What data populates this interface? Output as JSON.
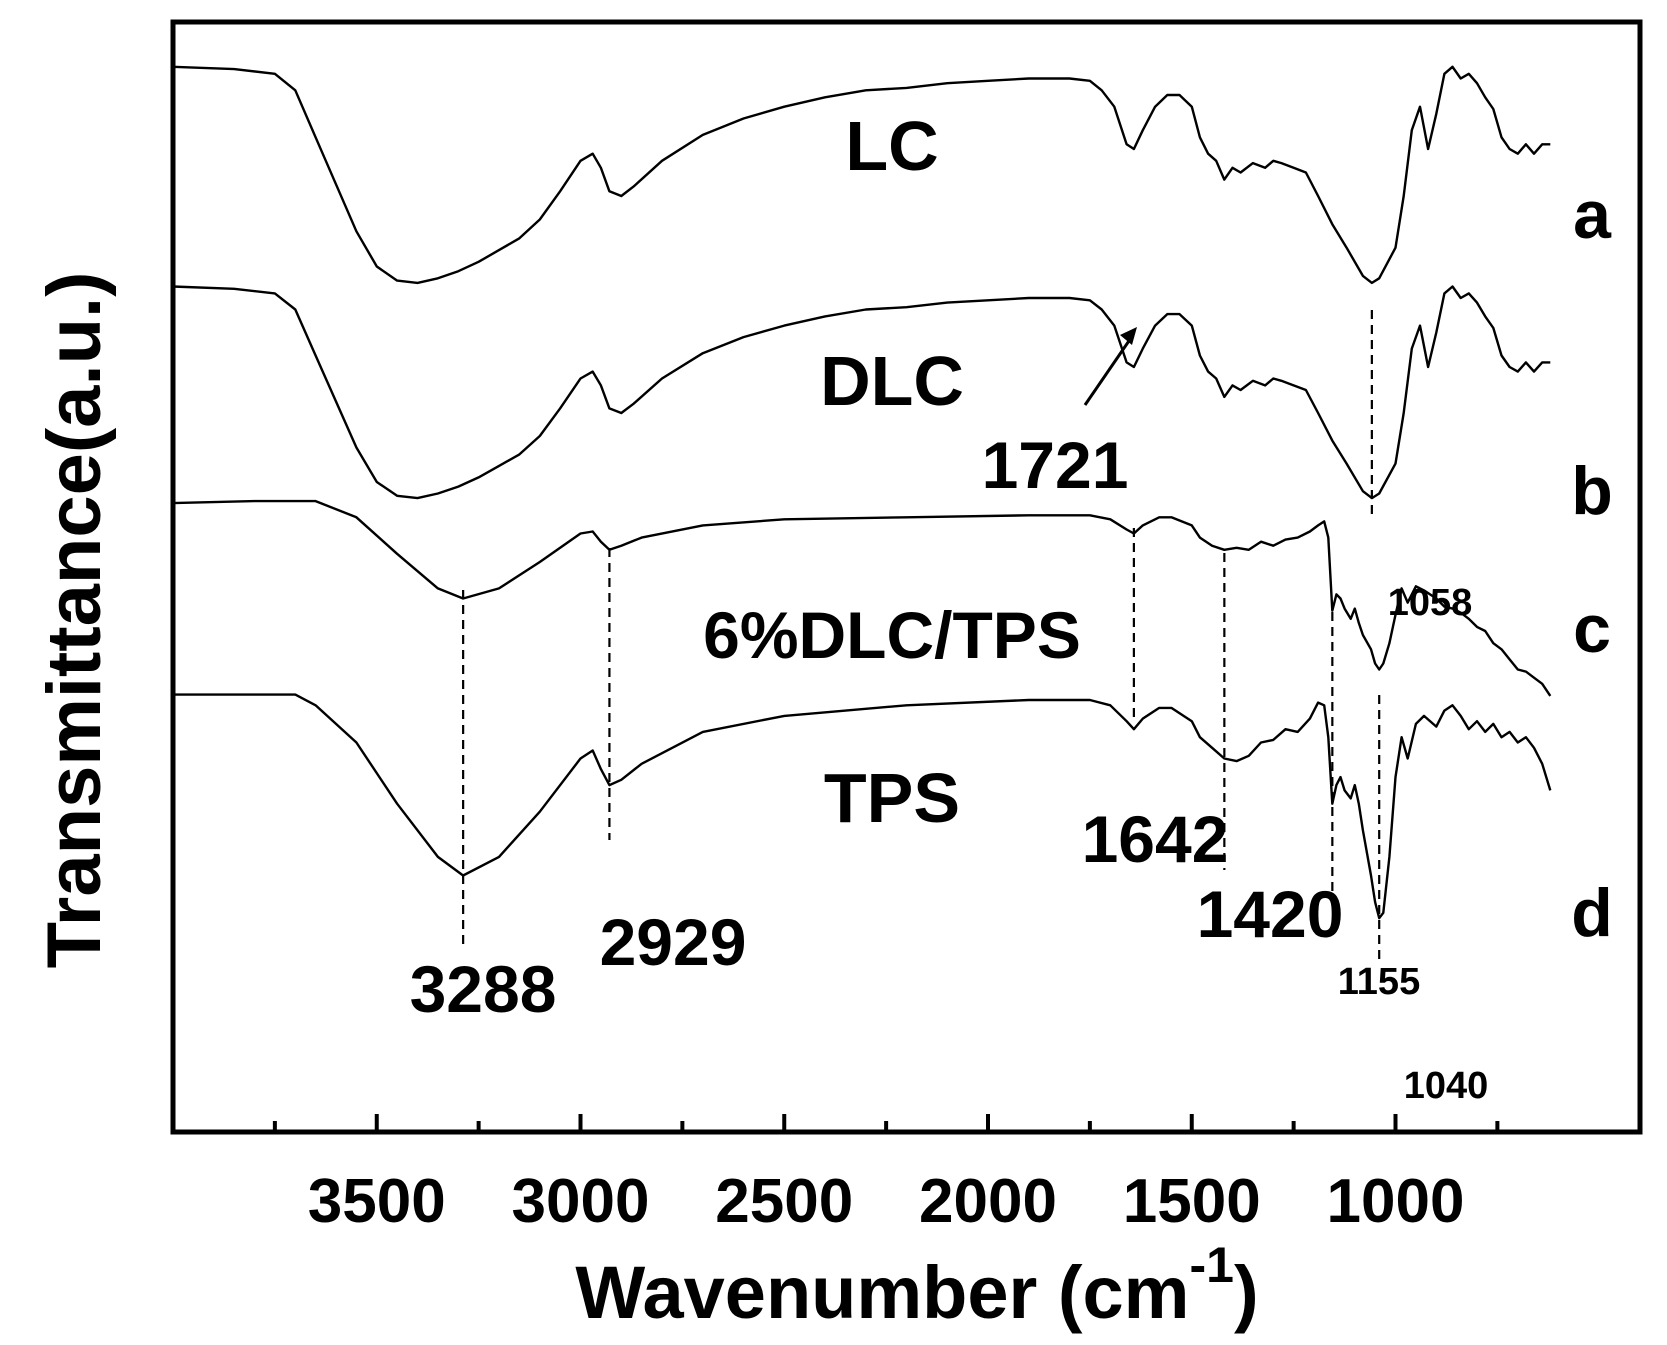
{
  "chart_data": {
    "type": "line",
    "xlabel": "Wavenumber (cm",
    "xlabel_superscript": "-1",
    "xlabel_close": ")",
    "ylabel": "Transmittance(a.u.)",
    "xlim": [
      4000,
      400
    ],
    "x_reversed": true,
    "x_ticks": [
      3500,
      3000,
      2500,
      2000,
      1500,
      1000
    ],
    "x_minor_ticks": [
      3750,
      3250,
      2750,
      2250,
      1750,
      1250,
      750
    ],
    "y_tick_labels": false,
    "grid": false,
    "line_color": "#000000",
    "series": [
      {
        "name": "LC",
        "letter": "a",
        "points": [
          [
            4000,
            0.95
          ],
          [
            3850,
            0.94
          ],
          [
            3750,
            0.92
          ],
          [
            3700,
            0.85
          ],
          [
            3650,
            0.65
          ],
          [
            3600,
            0.45
          ],
          [
            3550,
            0.25
          ],
          [
            3500,
            0.1
          ],
          [
            3450,
            0.04
          ],
          [
            3400,
            0.03
          ],
          [
            3350,
            0.05
          ],
          [
            3300,
            0.08
          ],
          [
            3250,
            0.12
          ],
          [
            3200,
            0.17
          ],
          [
            3150,
            0.22
          ],
          [
            3100,
            0.3
          ],
          [
            3050,
            0.42
          ],
          [
            3000,
            0.55
          ],
          [
            2970,
            0.58
          ],
          [
            2950,
            0.52
          ],
          [
            2929,
            0.42
          ],
          [
            2900,
            0.4
          ],
          [
            2870,
            0.44
          ],
          [
            2800,
            0.55
          ],
          [
            2700,
            0.66
          ],
          [
            2600,
            0.73
          ],
          [
            2500,
            0.78
          ],
          [
            2400,
            0.82
          ],
          [
            2300,
            0.85
          ],
          [
            2200,
            0.86
          ],
          [
            2100,
            0.88
          ],
          [
            2000,
            0.89
          ],
          [
            1900,
            0.9
          ],
          [
            1800,
            0.9
          ],
          [
            1750,
            0.89
          ],
          [
            1721,
            0.85
          ],
          [
            1690,
            0.78
          ],
          [
            1660,
            0.62
          ],
          [
            1642,
            0.6
          ],
          [
            1620,
            0.68
          ],
          [
            1590,
            0.78
          ],
          [
            1560,
            0.83
          ],
          [
            1530,
            0.83
          ],
          [
            1500,
            0.78
          ],
          [
            1480,
            0.65
          ],
          [
            1460,
            0.58
          ],
          [
            1440,
            0.55
          ],
          [
            1420,
            0.47
          ],
          [
            1400,
            0.52
          ],
          [
            1380,
            0.5
          ],
          [
            1350,
            0.54
          ],
          [
            1320,
            0.52
          ],
          [
            1300,
            0.55
          ],
          [
            1280,
            0.54
          ],
          [
            1250,
            0.52
          ],
          [
            1220,
            0.5
          ],
          [
            1190,
            0.4
          ],
          [
            1155,
            0.28
          ],
          [
            1120,
            0.18
          ],
          [
            1080,
            0.06
          ],
          [
            1058,
            0.03
          ],
          [
            1040,
            0.05
          ],
          [
            1000,
            0.18
          ],
          [
            980,
            0.4
          ],
          [
            960,
            0.68
          ],
          [
            940,
            0.78
          ],
          [
            920,
            0.6
          ],
          [
            900,
            0.75
          ],
          [
            880,
            0.92
          ],
          [
            860,
            0.95
          ],
          [
            840,
            0.9
          ],
          [
            820,
            0.92
          ],
          [
            800,
            0.88
          ],
          [
            780,
            0.82
          ],
          [
            760,
            0.77
          ],
          [
            740,
            0.65
          ],
          [
            720,
            0.6
          ],
          [
            700,
            0.58
          ],
          [
            680,
            0.62
          ],
          [
            660,
            0.58
          ],
          [
            640,
            0.62
          ],
          [
            620,
            0.62
          ]
        ]
      },
      {
        "name": "DLC",
        "letter": "b",
        "points": [
          [
            4000,
            0.95
          ],
          [
            3850,
            0.94
          ],
          [
            3750,
            0.92
          ],
          [
            3700,
            0.85
          ],
          [
            3650,
            0.65
          ],
          [
            3600,
            0.45
          ],
          [
            3550,
            0.25
          ],
          [
            3500,
            0.1
          ],
          [
            3450,
            0.04
          ],
          [
            3400,
            0.03
          ],
          [
            3350,
            0.05
          ],
          [
            3300,
            0.08
          ],
          [
            3250,
            0.12
          ],
          [
            3200,
            0.17
          ],
          [
            3150,
            0.22
          ],
          [
            3100,
            0.3
          ],
          [
            3050,
            0.42
          ],
          [
            3000,
            0.55
          ],
          [
            2970,
            0.58
          ],
          [
            2950,
            0.52
          ],
          [
            2929,
            0.42
          ],
          [
            2900,
            0.4
          ],
          [
            2870,
            0.44
          ],
          [
            2800,
            0.55
          ],
          [
            2700,
            0.66
          ],
          [
            2600,
            0.73
          ],
          [
            2500,
            0.78
          ],
          [
            2400,
            0.82
          ],
          [
            2300,
            0.85
          ],
          [
            2200,
            0.86
          ],
          [
            2100,
            0.88
          ],
          [
            2000,
            0.89
          ],
          [
            1900,
            0.9
          ],
          [
            1800,
            0.9
          ],
          [
            1750,
            0.89
          ],
          [
            1721,
            0.85
          ],
          [
            1690,
            0.78
          ],
          [
            1660,
            0.62
          ],
          [
            1642,
            0.6
          ],
          [
            1620,
            0.68
          ],
          [
            1590,
            0.78
          ],
          [
            1560,
            0.83
          ],
          [
            1530,
            0.83
          ],
          [
            1500,
            0.78
          ],
          [
            1480,
            0.65
          ],
          [
            1460,
            0.58
          ],
          [
            1440,
            0.55
          ],
          [
            1420,
            0.47
          ],
          [
            1400,
            0.52
          ],
          [
            1380,
            0.5
          ],
          [
            1350,
            0.54
          ],
          [
            1320,
            0.52
          ],
          [
            1300,
            0.55
          ],
          [
            1280,
            0.54
          ],
          [
            1250,
            0.52
          ],
          [
            1220,
            0.5
          ],
          [
            1190,
            0.4
          ],
          [
            1155,
            0.28
          ],
          [
            1120,
            0.18
          ],
          [
            1080,
            0.06
          ],
          [
            1058,
            0.03
          ],
          [
            1040,
            0.05
          ],
          [
            1000,
            0.18
          ],
          [
            980,
            0.4
          ],
          [
            960,
            0.68
          ],
          [
            940,
            0.78
          ],
          [
            920,
            0.6
          ],
          [
            900,
            0.75
          ],
          [
            880,
            0.92
          ],
          [
            860,
            0.95
          ],
          [
            840,
            0.9
          ],
          [
            820,
            0.92
          ],
          [
            800,
            0.88
          ],
          [
            780,
            0.82
          ],
          [
            760,
            0.77
          ],
          [
            740,
            0.65
          ],
          [
            720,
            0.6
          ],
          [
            700,
            0.58
          ],
          [
            680,
            0.62
          ],
          [
            660,
            0.58
          ],
          [
            640,
            0.62
          ],
          [
            620,
            0.62
          ]
        ]
      },
      {
        "name": "6%DLC/TPS",
        "letter": "c",
        "points": [
          [
            4000,
            0.97
          ],
          [
            3800,
            0.98
          ],
          [
            3650,
            0.98
          ],
          [
            3550,
            0.9
          ],
          [
            3450,
            0.72
          ],
          [
            3350,
            0.55
          ],
          [
            3288,
            0.5
          ],
          [
            3200,
            0.55
          ],
          [
            3100,
            0.68
          ],
          [
            3000,
            0.82
          ],
          [
            2970,
            0.83
          ],
          [
            2950,
            0.78
          ],
          [
            2929,
            0.74
          ],
          [
            2900,
            0.76
          ],
          [
            2850,
            0.8
          ],
          [
            2700,
            0.86
          ],
          [
            2500,
            0.89
          ],
          [
            2200,
            0.9
          ],
          [
            1900,
            0.91
          ],
          [
            1750,
            0.91
          ],
          [
            1700,
            0.89
          ],
          [
            1660,
            0.84
          ],
          [
            1642,
            0.82
          ],
          [
            1620,
            0.86
          ],
          [
            1580,
            0.9
          ],
          [
            1550,
            0.9
          ],
          [
            1500,
            0.86
          ],
          [
            1480,
            0.8
          ],
          [
            1450,
            0.76
          ],
          [
            1420,
            0.74
          ],
          [
            1390,
            0.75
          ],
          [
            1360,
            0.74
          ],
          [
            1330,
            0.78
          ],
          [
            1300,
            0.76
          ],
          [
            1270,
            0.79
          ],
          [
            1240,
            0.8
          ],
          [
            1210,
            0.83
          ],
          [
            1190,
            0.86
          ],
          [
            1175,
            0.88
          ],
          [
            1165,
            0.8
          ],
          [
            1155,
            0.44
          ],
          [
            1145,
            0.52
          ],
          [
            1135,
            0.5
          ],
          [
            1125,
            0.45
          ],
          [
            1110,
            0.4
          ],
          [
            1100,
            0.45
          ],
          [
            1090,
            0.38
          ],
          [
            1080,
            0.32
          ],
          [
            1060,
            0.25
          ],
          [
            1050,
            0.18
          ],
          [
            1040,
            0.15
          ],
          [
            1030,
            0.18
          ],
          [
            1015,
            0.28
          ],
          [
            1000,
            0.42
          ],
          [
            985,
            0.55
          ],
          [
            970,
            0.48
          ],
          [
            950,
            0.56
          ],
          [
            930,
            0.54
          ],
          [
            900,
            0.5
          ],
          [
            880,
            0.46
          ],
          [
            860,
            0.45
          ],
          [
            840,
            0.43
          ],
          [
            820,
            0.4
          ],
          [
            800,
            0.36
          ],
          [
            780,
            0.34
          ],
          [
            760,
            0.28
          ],
          [
            740,
            0.25
          ],
          [
            720,
            0.2
          ],
          [
            700,
            0.15
          ],
          [
            680,
            0.14
          ],
          [
            660,
            0.11
          ],
          [
            640,
            0.08
          ],
          [
            620,
            0.02
          ]
        ]
      },
      {
        "name": "TPS",
        "letter": "d",
        "points": [
          [
            4000,
            0.96
          ],
          [
            3850,
            0.96
          ],
          [
            3700,
            0.96
          ],
          [
            3650,
            0.92
          ],
          [
            3550,
            0.78
          ],
          [
            3450,
            0.55
          ],
          [
            3350,
            0.35
          ],
          [
            3288,
            0.28
          ],
          [
            3200,
            0.35
          ],
          [
            3100,
            0.52
          ],
          [
            3000,
            0.72
          ],
          [
            2970,
            0.75
          ],
          [
            2950,
            0.68
          ],
          [
            2929,
            0.62
          ],
          [
            2900,
            0.64
          ],
          [
            2850,
            0.7
          ],
          [
            2700,
            0.82
          ],
          [
            2500,
            0.88
          ],
          [
            2200,
            0.92
          ],
          [
            1900,
            0.94
          ],
          [
            1750,
            0.94
          ],
          [
            1700,
            0.92
          ],
          [
            1660,
            0.86
          ],
          [
            1642,
            0.83
          ],
          [
            1620,
            0.87
          ],
          [
            1580,
            0.91
          ],
          [
            1550,
            0.91
          ],
          [
            1500,
            0.86
          ],
          [
            1480,
            0.8
          ],
          [
            1450,
            0.76
          ],
          [
            1420,
            0.72
          ],
          [
            1390,
            0.71
          ],
          [
            1360,
            0.73
          ],
          [
            1330,
            0.78
          ],
          [
            1300,
            0.79
          ],
          [
            1270,
            0.83
          ],
          [
            1240,
            0.82
          ],
          [
            1210,
            0.87
          ],
          [
            1190,
            0.93
          ],
          [
            1175,
            0.92
          ],
          [
            1165,
            0.8
          ],
          [
            1155,
            0.55
          ],
          [
            1145,
            0.62
          ],
          [
            1135,
            0.65
          ],
          [
            1125,
            0.6
          ],
          [
            1110,
            0.57
          ],
          [
            1100,
            0.62
          ],
          [
            1090,
            0.55
          ],
          [
            1080,
            0.45
          ],
          [
            1060,
            0.28
          ],
          [
            1050,
            0.18
          ],
          [
            1040,
            0.12
          ],
          [
            1030,
            0.14
          ],
          [
            1015,
            0.35
          ],
          [
            1000,
            0.65
          ],
          [
            985,
            0.8
          ],
          [
            970,
            0.72
          ],
          [
            950,
            0.85
          ],
          [
            930,
            0.88
          ],
          [
            900,
            0.84
          ],
          [
            880,
            0.9
          ],
          [
            860,
            0.92
          ],
          [
            840,
            0.88
          ],
          [
            820,
            0.83
          ],
          [
            800,
            0.86
          ],
          [
            780,
            0.82
          ],
          [
            760,
            0.85
          ],
          [
            740,
            0.8
          ],
          [
            720,
            0.82
          ],
          [
            700,
            0.78
          ],
          [
            680,
            0.8
          ],
          [
            660,
            0.76
          ],
          [
            640,
            0.7
          ],
          [
            620,
            0.6
          ]
        ]
      }
    ],
    "annotations": [
      "1721",
      "1058",
      "3288",
      "2929",
      "1642",
      "1420",
      "1155",
      "1040"
    ]
  }
}
